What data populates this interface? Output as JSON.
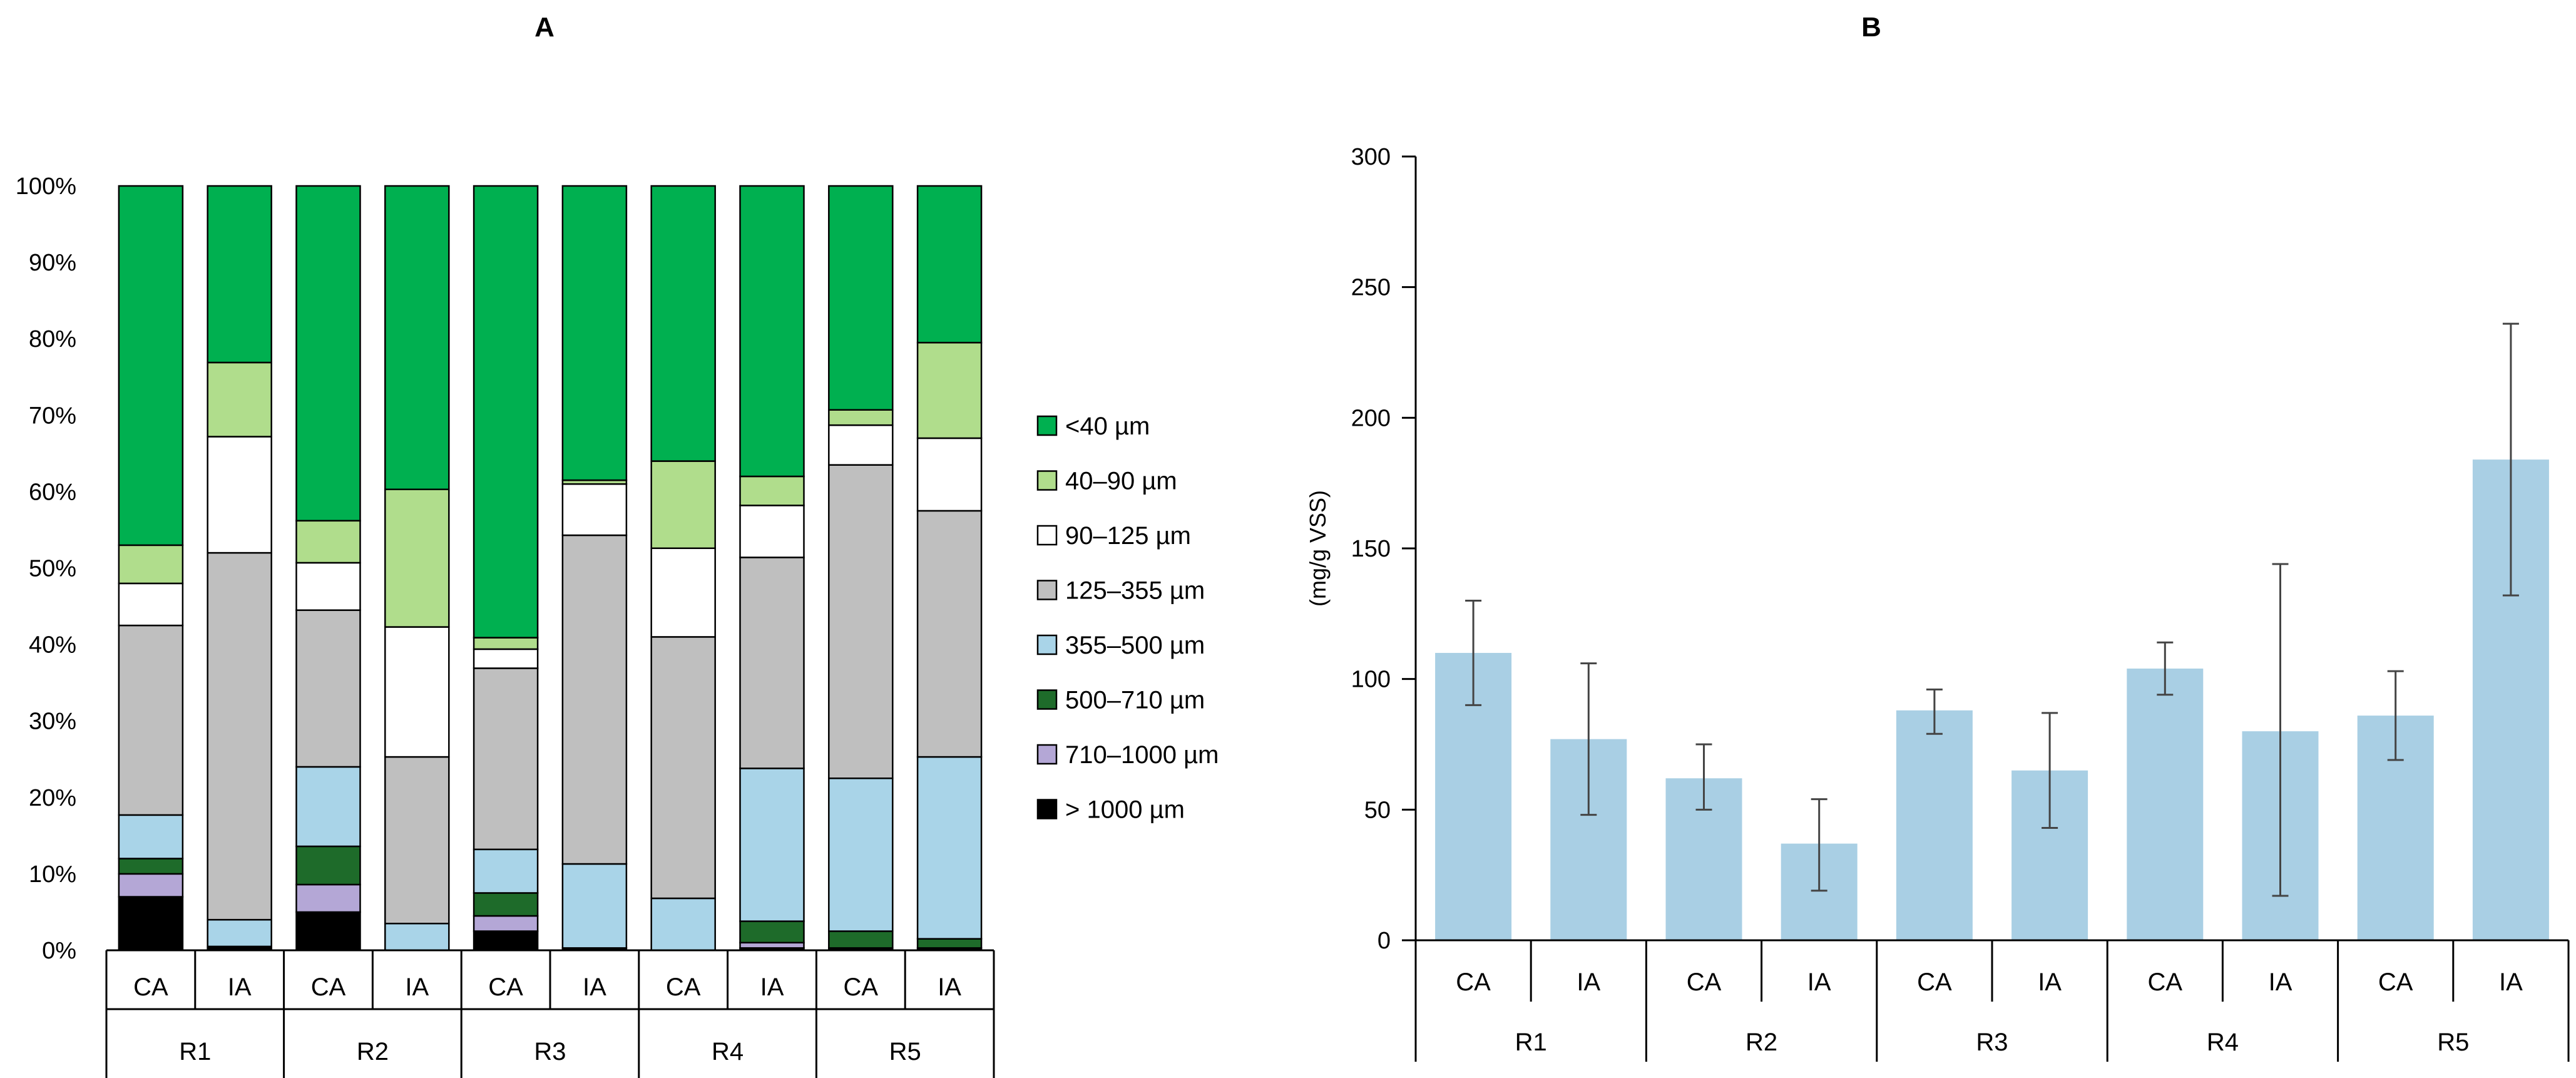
{
  "panels": {
    "a_label": "A",
    "b_label": "B"
  },
  "chart_data": [
    {
      "type": "bar",
      "stacked": true,
      "percent": true,
      "title": "A",
      "categories": [
        "CA",
        "IA",
        "CA",
        "IA",
        "CA",
        "IA",
        "CA",
        "IA",
        "CA",
        "IA"
      ],
      "groups": [
        "R1",
        "R2",
        "R3",
        "R4",
        "R5"
      ],
      "ylim": [
        0,
        100
      ],
      "yticks": [
        "0%",
        "10%",
        "20%",
        "30%",
        "40%",
        "50%",
        "60%",
        "70%",
        "80%",
        "90%",
        "100%"
      ],
      "series": [
        {
          "name": "> 1000 µm",
          "color": "#000000",
          "values": [
            7,
            0.3,
            5,
            0,
            2.5,
            0.3,
            0,
            0.3,
            0.3,
            0.3
          ]
        },
        {
          "name": "710–1000 µm",
          "color": "#b4a7d6",
          "values": [
            3,
            0.2,
            3.6,
            0,
            2,
            0,
            0,
            0.7,
            0,
            0
          ]
        },
        {
          "name": "500–710 µm",
          "color": "#1e6b2a",
          "values": [
            2,
            0,
            5,
            0,
            3,
            0,
            0,
            2.8,
            2.2,
            1.2
          ]
        },
        {
          "name": "355–500 µm",
          "color": "#a9d4e8",
          "values": [
            5.7,
            3.5,
            10.4,
            3.5,
            5.7,
            11,
            6.8,
            20,
            20,
            23.8
          ]
        },
        {
          "name": "125–355 µm",
          "color": "#bfbfbf",
          "values": [
            24.8,
            48,
            20.5,
            21.8,
            23.7,
            43,
            34.2,
            27.6,
            41,
            32.2
          ]
        },
        {
          "name": "90–125 µm",
          "color": "#ffffff",
          "values": [
            5.5,
            15.2,
            6.2,
            17,
            2.5,
            6.7,
            11.6,
            6.8,
            5.2,
            9.5
          ]
        },
        {
          "name": "40–90 µm",
          "color": "#b0dd8c",
          "values": [
            5,
            9.7,
            5.5,
            18,
            1.5,
            0.5,
            11.4,
            3.8,
            2,
            12.5
          ]
        },
        {
          "name": "<40 µm",
          "color": "#00b050",
          "values": [
            47,
            23.1,
            43.8,
            39.7,
            59.1,
            38.5,
            36,
            38,
            29.3,
            20.5
          ]
        }
      ]
    },
    {
      "type": "bar",
      "title": "B",
      "ylabel": "(mg/g VSS)",
      "categories": [
        "CA",
        "IA",
        "CA",
        "IA",
        "CA",
        "IA",
        "CA",
        "IA",
        "CA",
        "IA"
      ],
      "groups": [
        "R1",
        "R2",
        "R3",
        "R4",
        "R5"
      ],
      "ylim": [
        0,
        300
      ],
      "yticks": [
        "0",
        "50",
        "100",
        "150",
        "200",
        "250",
        "300"
      ],
      "bar_color": "#a9cfe4",
      "values": [
        110,
        77,
        62,
        37,
        88,
        65,
        104,
        80,
        86,
        184
      ],
      "error_low": [
        90,
        48,
        50,
        19,
        79,
        43,
        94,
        17,
        69,
        132
      ],
      "error_high": [
        130,
        106,
        75,
        54,
        96,
        87,
        114,
        144,
        103,
        236
      ]
    }
  ]
}
